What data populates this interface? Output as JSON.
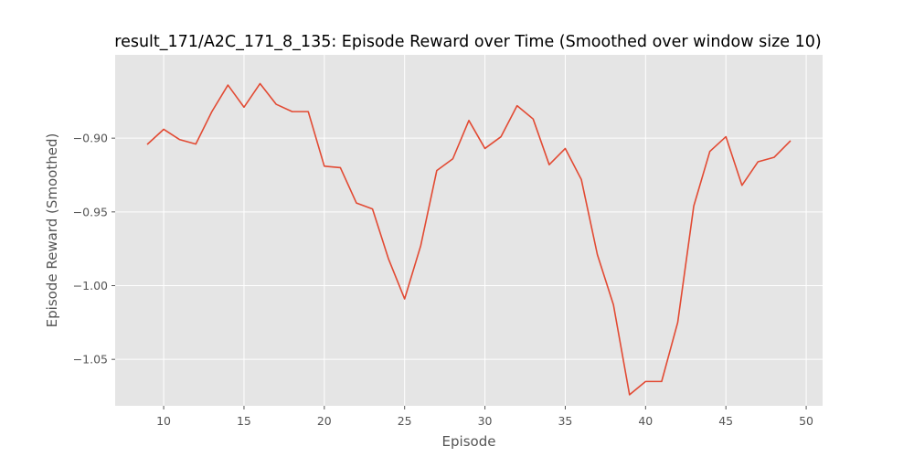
{
  "chart_data": {
    "type": "line",
    "title": "result_171/A2C_171_8_135: Episode Reward over Time (Smoothed over window size 10)",
    "xlabel": "Episode",
    "ylabel": "Episode Reward (Smoothed)",
    "xlim": [
      6.98,
      51.02
    ],
    "ylim": [
      -1.0815,
      -0.8435
    ],
    "xticks": [
      10,
      15,
      20,
      25,
      30,
      35,
      40,
      45,
      50
    ],
    "yticks": [
      -1.05,
      -1.0,
      -0.95,
      -0.9
    ],
    "ytick_labels": [
      "−1.05",
      "−1.00",
      "−0.95",
      "−0.90"
    ],
    "grid": true,
    "background": "#e5e5e5",
    "series": [
      {
        "color": "#e24a33",
        "x": [
          9,
          10,
          11,
          12,
          13,
          14,
          15,
          16,
          17,
          18,
          19,
          20,
          21,
          22,
          23,
          24,
          25,
          26,
          27,
          28,
          29,
          30,
          31,
          32,
          33,
          34,
          35,
          36,
          37,
          38,
          39,
          40,
          41,
          42,
          43,
          44,
          45,
          46,
          47,
          48,
          49
        ],
        "values": [
          -0.904,
          -0.894,
          -0.901,
          -0.904,
          -0.882,
          -0.864,
          -0.879,
          -0.863,
          -0.877,
          -0.882,
          -0.882,
          -0.919,
          -0.92,
          -0.944,
          -0.948,
          -0.982,
          -1.009,
          -0.973,
          -0.922,
          -0.914,
          -0.888,
          -0.907,
          -0.899,
          -0.878,
          -0.887,
          -0.918,
          -0.907,
          -0.928,
          -0.979,
          -1.013,
          -1.074,
          -1.065,
          -1.065,
          -1.025,
          -0.946,
          -0.909,
          -0.899,
          -0.932,
          -0.916,
          -0.913,
          -0.902
        ]
      }
    ]
  }
}
